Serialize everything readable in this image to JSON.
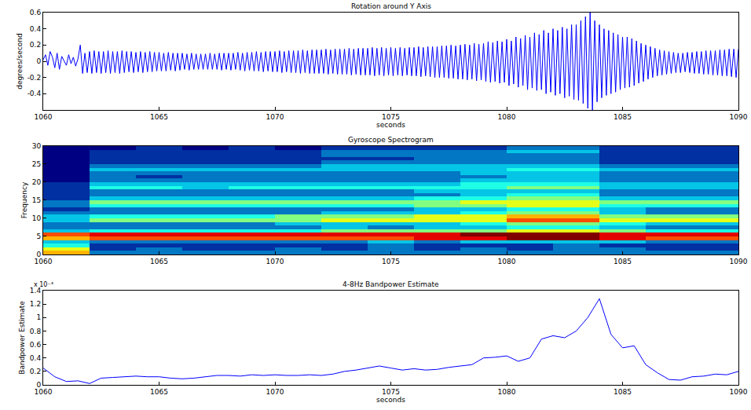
{
  "chart_data": [
    {
      "type": "line",
      "title": "Rotation around Y Axis",
      "x_label": "seconds",
      "y_label": "degrees/second",
      "color": "#0000ff",
      "grid": false,
      "xlim": [
        1060,
        1090
      ],
      "xticks": [
        1060,
        1065,
        1070,
        1075,
        1080,
        1085,
        1090
      ],
      "ylim": [
        -0.6,
        0.6
      ],
      "yticks": [
        -0.4,
        -0.2,
        0,
        0.2,
        0.4,
        0.6
      ],
      "x": [
        1060,
        1060.1,
        1060.2,
        1060.3,
        1060.4,
        1060.5,
        1060.6,
        1060.7,
        1060.8,
        1060.9,
        1061,
        1061.1,
        1061.2,
        1061.3,
        1061.4,
        1061.5,
        1061.6,
        1061.7,
        1061.8,
        1061.9,
        1062,
        1062.1,
        1062.2,
        1062.3,
        1062.4,
        1062.5,
        1062.6,
        1062.7,
        1062.8,
        1062.9,
        1063,
        1063.1,
        1063.2,
        1063.3,
        1063.4,
        1063.5,
        1063.6,
        1063.7,
        1063.8,
        1063.9,
        1064,
        1064.1,
        1064.2,
        1064.3,
        1064.4,
        1064.5,
        1064.6,
        1064.7,
        1064.8,
        1064.9,
        1065,
        1065.1,
        1065.2,
        1065.3,
        1065.4,
        1065.5,
        1065.6,
        1065.7,
        1065.8,
        1065.9,
        1066,
        1066.1,
        1066.2,
        1066.3,
        1066.4,
        1066.5,
        1066.6,
        1066.7,
        1066.8,
        1066.9,
        1067,
        1067.1,
        1067.2,
        1067.3,
        1067.4,
        1067.5,
        1067.6,
        1067.7,
        1067.8,
        1067.9,
        1068,
        1068.1,
        1068.2,
        1068.3,
        1068.4,
        1068.5,
        1068.6,
        1068.7,
        1068.8,
        1068.9,
        1069,
        1069.1,
        1069.2,
        1069.3,
        1069.4,
        1069.5,
        1069.6,
        1069.7,
        1069.8,
        1069.9,
        1070,
        1070.1,
        1070.2,
        1070.3,
        1070.4,
        1070.5,
        1070.6,
        1070.7,
        1070.8,
        1070.9,
        1071,
        1071.1,
        1071.2,
        1071.3,
        1071.4,
        1071.5,
        1071.6,
        1071.7,
        1071.8,
        1071.9,
        1072,
        1072.1,
        1072.2,
        1072.3,
        1072.4,
        1072.5,
        1072.6,
        1072.7,
        1072.8,
        1072.9,
        1073,
        1073.1,
        1073.2,
        1073.3,
        1073.4,
        1073.5,
        1073.6,
        1073.7,
        1073.8,
        1073.9,
        1074,
        1074.1,
        1074.2,
        1074.3,
        1074.4,
        1074.5,
        1074.6,
        1074.7,
        1074.8,
        1074.9,
        1075,
        1075.1,
        1075.2,
        1075.3,
        1075.4,
        1075.5,
        1075.6,
        1075.7,
        1075.8,
        1075.9,
        1076,
        1076.1,
        1076.2,
        1076.3,
        1076.4,
        1076.5,
        1076.6,
        1076.7,
        1076.8,
        1076.9,
        1077,
        1077.1,
        1077.2,
        1077.3,
        1077.4,
        1077.5,
        1077.6,
        1077.7,
        1077.8,
        1077.9,
        1078,
        1078.1,
        1078.2,
        1078.3,
        1078.4,
        1078.5,
        1078.6,
        1078.7,
        1078.8,
        1078.9,
        1079,
        1079.1,
        1079.2,
        1079.3,
        1079.4,
        1079.5,
        1079.6,
        1079.7,
        1079.8,
        1079.9,
        1080,
        1080.1,
        1080.2,
        1080.3,
        1080.4,
        1080.5,
        1080.6,
        1080.7,
        1080.8,
        1080.9,
        1081,
        1081.1,
        1081.2,
        1081.3,
        1081.4,
        1081.5,
        1081.6,
        1081.7,
        1081.8,
        1081.9,
        1082,
        1082.1,
        1082.2,
        1082.3,
        1082.4,
        1082.5,
        1082.6,
        1082.7,
        1082.8,
        1082.9,
        1083,
        1083.1,
        1083.2,
        1083.3,
        1083.4,
        1083.5,
        1083.6,
        1083.7,
        1083.8,
        1083.9,
        1084,
        1084.1,
        1084.2,
        1084.3,
        1084.4,
        1084.5,
        1084.6,
        1084.7,
        1084.8,
        1084.9,
        1085,
        1085.1,
        1085.2,
        1085.3,
        1085.4,
        1085.5,
        1085.6,
        1085.7,
        1085.8,
        1085.9,
        1086,
        1086.1,
        1086.2,
        1086.3,
        1086.4,
        1086.5,
        1086.6,
        1086.7,
        1086.8,
        1086.9,
        1087,
        1087.1,
        1087.2,
        1087.3,
        1087.4,
        1087.5,
        1087.6,
        1087.7,
        1087.8,
        1087.9,
        1088,
        1088.1,
        1088.2,
        1088.3,
        1088.4,
        1088.5,
        1088.6,
        1088.7,
        1088.8,
        1088.9,
        1089,
        1089.1,
        1089.2,
        1089.3,
        1089.4,
        1089.5,
        1089.6,
        1089.7,
        1089.8,
        1089.9,
        1090
      ],
      "values": [
        0.02,
        0.08,
        -0.05,
        0.12,
        0.05,
        -0.08,
        0.1,
        -0.1,
        0.06,
        0.0,
        -0.05,
        0.08,
        -0.03,
        0.05,
        -0.06,
        0.03,
        0.2,
        -0.15,
        0.1,
        -0.14,
        0.12,
        -0.15,
        0.13,
        -0.14,
        0.12,
        -0.15,
        0.12,
        -0.14,
        0.13,
        -0.15,
        0.12,
        -0.14,
        0.12,
        -0.15,
        0.13,
        -0.14,
        0.12,
        -0.13,
        0.12,
        -0.14,
        0.11,
        -0.13,
        0.12,
        -0.14,
        0.11,
        -0.13,
        0.12,
        -0.13,
        0.11,
        -0.12,
        0.11,
        -0.12,
        0.1,
        -0.12,
        0.11,
        -0.11,
        0.1,
        -0.12,
        0.1,
        -0.11,
        0.1,
        -0.1,
        0.09,
        -0.11,
        0.1,
        -0.1,
        0.09,
        -0.1,
        0.09,
        -0.1,
        0.09,
        -0.1,
        0.1,
        -0.1,
        0.09,
        -0.1,
        0.1,
        -0.11,
        0.1,
        -0.1,
        0.1,
        -0.11,
        0.1,
        -0.1,
        0.11,
        -0.11,
        0.1,
        -0.12,
        0.11,
        -0.11,
        0.11,
        -0.12,
        0.12,
        -0.12,
        0.11,
        -0.13,
        0.12,
        -0.12,
        0.12,
        -0.13,
        0.12,
        -0.13,
        0.13,
        -0.14,
        0.12,
        -0.13,
        0.13,
        -0.14,
        0.13,
        -0.14,
        0.13,
        -0.15,
        0.14,
        -0.14,
        0.13,
        -0.15,
        0.14,
        -0.15,
        0.14,
        -0.15,
        0.14,
        -0.15,
        0.15,
        -0.16,
        0.14,
        -0.15,
        0.15,
        -0.16,
        0.15,
        -0.16,
        0.15,
        -0.16,
        0.16,
        -0.17,
        0.15,
        -0.16,
        0.16,
        -0.17,
        0.16,
        -0.17,
        0.16,
        -0.17,
        0.17,
        -0.18,
        0.16,
        -0.17,
        0.17,
        -0.18,
        0.16,
        -0.17,
        0.17,
        -0.18,
        0.16,
        -0.17,
        0.17,
        -0.18,
        0.16,
        -0.17,
        0.17,
        -0.18,
        0.17,
        -0.18,
        0.18,
        -0.19,
        0.17,
        -0.18,
        0.18,
        -0.19,
        0.18,
        -0.2,
        0.18,
        -0.2,
        0.19,
        -0.2,
        0.19,
        -0.21,
        0.2,
        -0.21,
        0.19,
        -0.22,
        0.2,
        -0.22,
        0.21,
        -0.23,
        0.2,
        -0.22,
        0.22,
        -0.24,
        0.21,
        -0.23,
        0.22,
        -0.25,
        0.24,
        -0.26,
        0.23,
        -0.25,
        0.25,
        -0.27,
        0.24,
        -0.26,
        0.27,
        -0.3,
        0.25,
        -0.28,
        0.3,
        -0.32,
        0.28,
        -0.3,
        0.32,
        -0.35,
        0.3,
        -0.33,
        0.35,
        -0.36,
        0.33,
        -0.35,
        0.38,
        -0.4,
        0.35,
        -0.38,
        0.4,
        -0.42,
        0.38,
        -0.4,
        0.42,
        -0.45,
        0.4,
        -0.43,
        0.45,
        -0.47,
        0.45,
        -0.48,
        0.5,
        -0.52,
        0.55,
        -0.58,
        0.6,
        -0.6,
        0.5,
        -0.5,
        0.45,
        -0.45,
        0.4,
        -0.42,
        0.38,
        -0.4,
        0.35,
        -0.38,
        0.33,
        -0.35,
        0.3,
        -0.33,
        0.3,
        -0.32,
        0.28,
        -0.3,
        0.25,
        -0.27,
        0.22,
        -0.25,
        0.2,
        -0.22,
        0.18,
        -0.2,
        0.16,
        -0.18,
        0.14,
        -0.17,
        0.13,
        -0.16,
        0.12,
        -0.15,
        0.11,
        -0.14,
        0.1,
        -0.14,
        0.1,
        -0.13,
        0.11,
        -0.14,
        0.11,
        -0.15,
        0.12,
        -0.15,
        0.12,
        -0.16,
        0.13,
        -0.16,
        0.13,
        -0.17,
        0.13,
        -0.17,
        0.14,
        -0.18,
        0.14,
        -0.18,
        0.15,
        -0.19,
        0.15,
        -0.2,
        0.15
      ]
    },
    {
      "type": "heatmap",
      "title": "Gyroscope Spectrogram",
      "y_label": "Frequency",
      "grid": false,
      "xlim": [
        1060,
        1090
      ],
      "xticks": [
        1060,
        1065,
        1070,
        1075,
        1080,
        1085,
        1090
      ],
      "ylim": [
        0,
        30
      ],
      "yticks": [
        0,
        5,
        10,
        15,
        20,
        25,
        30
      ],
      "zlim": [
        0,
        10
      ],
      "x": [
        1061,
        1063,
        1065,
        1067,
        1069,
        1071,
        1073,
        1075,
        1077,
        1079,
        1081,
        1083,
        1085,
        1087,
        1089
      ],
      "y": [
        0.5,
        1.5,
        2.5,
        3.5,
        4.5,
        5.5,
        6.5,
        7.5,
        8.5,
        9.5,
        10.5,
        11.5,
        12.5,
        13.5,
        14.5,
        15.5,
        16.5,
        17.5,
        18.5,
        19.5,
        20.5,
        21.5,
        22.5,
        23.5,
        24.5,
        25.5,
        26.5,
        27.5,
        28.5,
        29.5
      ],
      "z": [
        [
          7,
          2,
          2,
          2,
          2,
          2,
          2,
          2,
          2,
          2,
          2,
          2,
          2,
          2,
          2
        ],
        [
          6,
          1,
          2,
          1,
          1,
          2,
          1,
          2,
          1,
          2,
          1,
          2,
          2,
          1,
          1
        ],
        [
          4,
          1,
          1,
          1,
          1,
          1,
          1,
          2,
          1,
          1,
          1,
          2,
          1,
          1,
          1
        ],
        [
          3,
          2,
          2,
          2,
          2,
          2,
          2,
          3,
          2,
          3,
          3,
          3,
          3,
          2,
          2
        ],
        [
          7,
          8,
          8,
          8,
          8,
          8,
          8,
          8,
          9,
          9,
          10,
          10,
          9,
          8,
          8
        ],
        [
          8,
          9,
          9,
          9,
          9,
          9,
          9,
          9,
          9,
          10,
          10,
          10,
          9,
          9,
          9
        ],
        [
          3,
          4,
          4,
          4,
          4,
          4,
          5,
          5,
          5,
          5,
          6,
          6,
          5,
          4,
          4
        ],
        [
          2,
          2,
          2,
          2,
          2,
          2,
          3,
          2,
          3,
          3,
          4,
          4,
          3,
          2,
          2
        ],
        [
          2,
          2,
          2,
          2,
          2,
          3,
          3,
          3,
          3,
          4,
          5,
          5,
          4,
          3,
          3
        ],
        [
          3,
          5,
          5,
          5,
          5,
          5,
          6,
          6,
          6,
          6,
          8,
          8,
          6,
          6,
          6
        ],
        [
          3,
          4,
          4,
          4,
          4,
          5,
          5,
          5,
          6,
          6,
          7,
          7,
          5,
          5,
          5
        ],
        [
          2,
          2,
          2,
          2,
          2,
          2,
          3,
          3,
          3,
          4,
          5,
          5,
          3,
          2,
          2
        ],
        [
          1,
          2,
          2,
          2,
          2,
          2,
          2,
          2,
          3,
          3,
          4,
          4,
          3,
          2,
          2
        ],
        [
          2,
          4,
          4,
          4,
          4,
          4,
          4,
          4,
          5,
          5,
          6,
          6,
          4,
          4,
          4
        ],
        [
          2,
          5,
          5,
          5,
          5,
          5,
          5,
          5,
          5,
          6,
          6,
          6,
          5,
          5,
          5
        ],
        [
          1,
          3,
          3,
          3,
          3,
          3,
          3,
          3,
          4,
          4,
          5,
          5,
          3,
          3,
          3
        ],
        [
          1,
          2,
          2,
          2,
          2,
          2,
          2,
          2,
          2,
          3,
          4,
          4,
          2,
          2,
          2
        ],
        [
          1,
          2,
          2,
          2,
          2,
          2,
          2,
          2,
          3,
          3,
          3,
          3,
          2,
          2,
          2
        ],
        [
          1,
          4,
          4,
          3,
          4,
          4,
          4,
          4,
          4,
          4,
          5,
          5,
          3,
          3,
          3
        ],
        [
          1,
          3,
          3,
          3,
          3,
          3,
          3,
          3,
          3,
          4,
          4,
          4,
          3,
          3,
          3
        ],
        [
          0,
          2,
          2,
          2,
          2,
          2,
          2,
          2,
          2,
          3,
          3,
          3,
          2,
          2,
          2
        ],
        [
          0,
          2,
          1,
          2,
          2,
          2,
          2,
          2,
          2,
          2,
          3,
          3,
          2,
          2,
          2
        ],
        [
          0,
          2,
          2,
          2,
          2,
          2,
          2,
          2,
          2,
          3,
          3,
          3,
          2,
          2,
          2
        ],
        [
          0,
          3,
          3,
          3,
          3,
          3,
          3,
          3,
          3,
          3,
          4,
          4,
          3,
          3,
          3
        ],
        [
          0,
          2,
          2,
          2,
          2,
          2,
          3,
          3,
          3,
          3,
          3,
          3,
          2,
          2,
          2
        ],
        [
          0,
          1,
          1,
          1,
          1,
          1,
          2,
          2,
          2,
          2,
          2,
          2,
          1,
          1,
          1
        ],
        [
          0,
          1,
          1,
          1,
          1,
          1,
          1,
          1,
          2,
          2,
          2,
          2,
          1,
          1,
          1
        ],
        [
          0,
          1,
          1,
          1,
          1,
          1,
          2,
          2,
          2,
          2,
          2,
          2,
          1,
          1,
          1
        ],
        [
          0,
          1,
          1,
          1,
          1,
          1,
          2,
          2,
          2,
          2,
          3,
          3,
          1,
          1,
          1
        ],
        [
          0,
          0,
          1,
          0,
          1,
          0,
          1,
          1,
          1,
          1,
          2,
          2,
          1,
          1,
          1
        ]
      ]
    },
    {
      "type": "line",
      "title": "4-8Hz Bandpower Estimate",
      "x_label": "seconds",
      "y_label": "Bandpower Estimate",
      "color": "#0000ff",
      "grid": false,
      "annotations": [
        "x 10⁻³"
      ],
      "xlim": [
        1060,
        1090
      ],
      "xticks": [
        1060,
        1065,
        1070,
        1075,
        1080,
        1085,
        1090
      ],
      "ylim": [
        0,
        1.4
      ],
      "yticks": [
        0,
        0.2,
        0.4,
        0.6,
        0.8,
        1,
        1.2,
        1.4
      ],
      "x": [
        1060,
        1060.5,
        1061,
        1061.5,
        1062,
        1062.5,
        1063,
        1063.5,
        1064,
        1064.5,
        1065,
        1065.5,
        1066,
        1066.5,
        1067,
        1067.5,
        1068,
        1068.5,
        1069,
        1069.5,
        1070,
        1070.5,
        1071,
        1071.5,
        1072,
        1072.5,
        1073,
        1073.5,
        1074,
        1074.5,
        1075,
        1075.5,
        1076,
        1076.5,
        1077,
        1077.5,
        1078,
        1078.5,
        1079,
        1079.5,
        1080,
        1080.5,
        1081,
        1081.5,
        1082,
        1082.5,
        1083,
        1083.5,
        1084,
        1084.5,
        1085,
        1085.5,
        1086,
        1086.5,
        1087,
        1087.5,
        1088,
        1088.5,
        1089,
        1089.5,
        1090
      ],
      "values": [
        0.25,
        0.12,
        0.05,
        0.06,
        0.02,
        0.1,
        0.11,
        0.12,
        0.13,
        0.12,
        0.12,
        0.1,
        0.09,
        0.1,
        0.12,
        0.14,
        0.14,
        0.13,
        0.15,
        0.14,
        0.15,
        0.14,
        0.14,
        0.15,
        0.14,
        0.16,
        0.2,
        0.22,
        0.25,
        0.28,
        0.25,
        0.22,
        0.24,
        0.22,
        0.23,
        0.26,
        0.28,
        0.3,
        0.4,
        0.41,
        0.43,
        0.35,
        0.4,
        0.68,
        0.73,
        0.7,
        0.8,
        1.0,
        1.28,
        0.75,
        0.55,
        0.58,
        0.3,
        0.18,
        0.08,
        0.07,
        0.12,
        0.13,
        0.16,
        0.15,
        0.2
      ]
    }
  ]
}
